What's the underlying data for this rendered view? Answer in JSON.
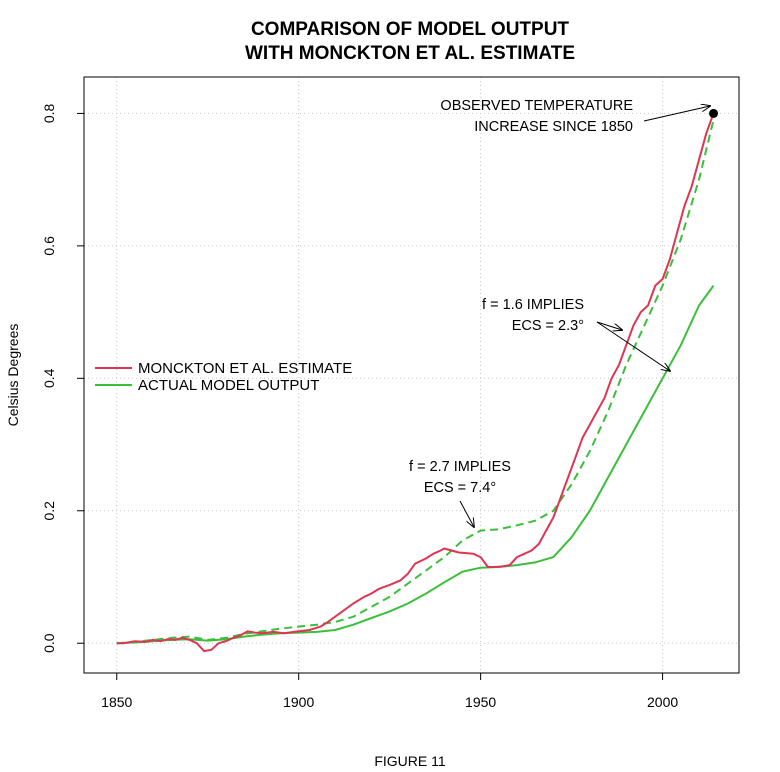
{
  "chart_data": {
    "type": "line",
    "title": [
      "COMPARISON OF MODEL OUTPUT",
      "WITH MONCKTON ET AL. ESTIMATE"
    ],
    "xlabel": "",
    "ylabel": "Celsius Degrees",
    "xlim": [
      1841,
      2021
    ],
    "ylim": [
      -0.045,
      0.855
    ],
    "xticks": [
      1850,
      1900,
      1950,
      2000
    ],
    "yticks": [
      0.0,
      0.2,
      0.4,
      0.6,
      0.8
    ],
    "xtick_labels": [
      "1850",
      "1900",
      "1950",
      "2000"
    ],
    "ytick_labels": [
      "0.0",
      "0.2",
      "0.4",
      "0.6",
      "0.8"
    ],
    "grid": true,
    "legend_position": "left-middle",
    "series": [
      {
        "name": "MONCKTON ET AL. ESTIMATE",
        "color": "#e03552",
        "style": "solid",
        "x": [
          1850,
          1852,
          1855,
          1858,
          1860,
          1862,
          1864,
          1866,
          1868,
          1870,
          1872,
          1874,
          1876,
          1878,
          1880,
          1882,
          1884,
          1886,
          1888,
          1890,
          1893,
          1896,
          1900,
          1903,
          1906,
          1908,
          1910,
          1912,
          1915,
          1918,
          1920,
          1922,
          1925,
          1928,
          1930,
          1932,
          1935,
          1937,
          1939,
          1940,
          1942,
          1944,
          1946,
          1948,
          1950,
          1952,
          1954,
          1956,
          1958,
          1960,
          1962,
          1964,
          1966,
          1968,
          1970,
          1972,
          1974,
          1976,
          1978,
          1980,
          1982,
          1984,
          1986,
          1988,
          1990,
          1992,
          1994,
          1996,
          1998,
          2000,
          2002,
          2004,
          2006,
          2008,
          2010,
          2012,
          2014
        ],
        "y": [
          0.0,
          0.0,
          0.003,
          0.002,
          0.005,
          0.003,
          0.006,
          0.005,
          0.008,
          0.005,
          0.0,
          -0.012,
          -0.01,
          0.0,
          0.003,
          0.008,
          0.012,
          0.018,
          0.016,
          0.015,
          0.017,
          0.015,
          0.018,
          0.02,
          0.025,
          0.032,
          0.04,
          0.048,
          0.06,
          0.07,
          0.075,
          0.082,
          0.088,
          0.095,
          0.105,
          0.12,
          0.128,
          0.135,
          0.14,
          0.143,
          0.14,
          0.137,
          0.136,
          0.135,
          0.13,
          0.115,
          0.115,
          0.116,
          0.118,
          0.13,
          0.135,
          0.14,
          0.15,
          0.17,
          0.19,
          0.22,
          0.25,
          0.28,
          0.31,
          0.33,
          0.35,
          0.37,
          0.4,
          0.42,
          0.45,
          0.48,
          0.5,
          0.51,
          0.54,
          0.55,
          0.58,
          0.62,
          0.66,
          0.69,
          0.73,
          0.77,
          0.8
        ]
      },
      {
        "name": "",
        "color": "#3bbf3b",
        "style": "dashed",
        "x": [
          1850,
          1855,
          1860,
          1865,
          1870,
          1875,
          1880,
          1885,
          1890,
          1895,
          1900,
          1905,
          1910,
          1915,
          1920,
          1925,
          1930,
          1935,
          1940,
          1945,
          1950,
          1955,
          1960,
          1965,
          1970,
          1975,
          1980,
          1985,
          1990,
          1995,
          2000,
          2005,
          2010,
          2014
        ],
        "y": [
          0.0,
          0.002,
          0.005,
          0.008,
          0.01,
          0.005,
          0.008,
          0.014,
          0.018,
          0.022,
          0.025,
          0.028,
          0.032,
          0.04,
          0.055,
          0.07,
          0.09,
          0.11,
          0.13,
          0.155,
          0.17,
          0.172,
          0.178,
          0.185,
          0.2,
          0.24,
          0.29,
          0.35,
          0.42,
          0.48,
          0.54,
          0.61,
          0.7,
          0.79
        ]
      },
      {
        "name": "ACTUAL MODEL OUTPUT",
        "color": "#3bbf3b",
        "style": "solid",
        "x": [
          1850,
          1855,
          1860,
          1865,
          1870,
          1875,
          1880,
          1885,
          1890,
          1895,
          1900,
          1905,
          1910,
          1915,
          1920,
          1925,
          1930,
          1935,
          1940,
          1945,
          1950,
          1955,
          1960,
          1965,
          1970,
          1975,
          1980,
          1985,
          1990,
          1995,
          2000,
          2005,
          2010,
          2014
        ],
        "y": [
          0.0,
          0.001,
          0.003,
          0.005,
          0.006,
          0.004,
          0.006,
          0.01,
          0.013,
          0.015,
          0.016,
          0.017,
          0.02,
          0.028,
          0.038,
          0.048,
          0.06,
          0.075,
          0.092,
          0.108,
          0.114,
          0.115,
          0.118,
          0.122,
          0.13,
          0.16,
          0.2,
          0.25,
          0.3,
          0.35,
          0.4,
          0.45,
          0.51,
          0.54
        ]
      }
    ],
    "point": {
      "x": 2014,
      "y": 0.8
    },
    "annotations": [
      {
        "lines": [
          "OBSERVED TEMPERATURE",
          "INCREASE SINCE 1850"
        ]
      },
      {
        "lines": [
          "f = 1.6 IMPLIES",
          "ECS = 2.3°"
        ]
      },
      {
        "lines": [
          "f = 2.7 IMPLIES",
          "ECS = 7.4°"
        ]
      }
    ],
    "caption": "FIGURE 11"
  }
}
